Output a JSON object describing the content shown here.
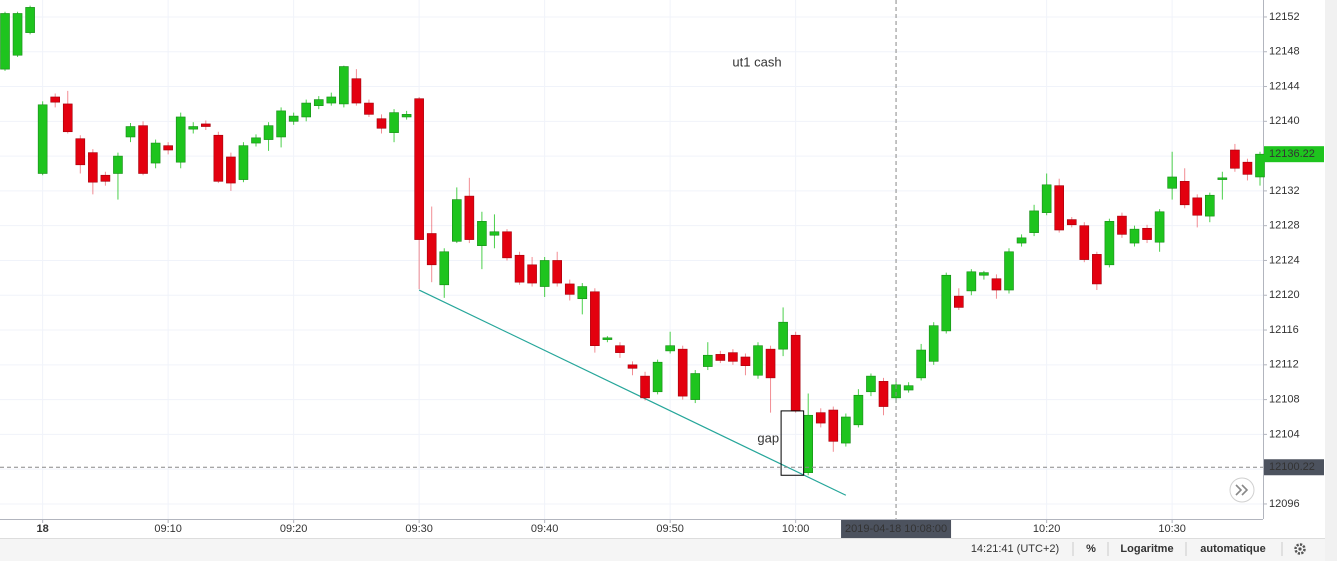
{
  "chart_data": {
    "type": "candlestick",
    "title": "ut1 cash",
    "categories": [
      "08:57",
      "08:58",
      "08:59",
      "09:00",
      "09:01",
      "09:02",
      "09:03",
      "09:04",
      "09:05",
      "09:06",
      "09:07",
      "09:08",
      "09:09",
      "09:10",
      "09:11",
      "09:12",
      "09:13",
      "09:14",
      "09:15",
      "09:16",
      "09:17",
      "09:18",
      "09:19",
      "09:20",
      "09:21",
      "09:22",
      "09:23",
      "09:24",
      "09:25",
      "09:26",
      "09:27",
      "09:28",
      "09:29",
      "09:30",
      "09:31",
      "09:32",
      "09:33",
      "09:34",
      "09:35",
      "09:36",
      "09:37",
      "09:38",
      "09:39",
      "09:40",
      "09:41",
      "09:42",
      "09:43",
      "09:44",
      "09:45",
      "09:46",
      "09:47",
      "09:48",
      "09:49",
      "09:50",
      "09:51",
      "09:52",
      "09:53",
      "09:54",
      "09:55",
      "09:56",
      "09:57",
      "09:58",
      "09:59",
      "10:00",
      "10:01",
      "10:02",
      "10:03",
      "10:04",
      "10:05",
      "10:06",
      "10:07",
      "10:08",
      "10:09",
      "10:10",
      "10:11",
      "10:12",
      "10:13",
      "10:14",
      "10:15",
      "10:16",
      "10:17",
      "10:18",
      "10:19",
      "10:20",
      "10:21",
      "10:22",
      "10:23",
      "10:24",
      "10:25",
      "10:26",
      "10:27",
      "10:28",
      "10:29",
      "10:30",
      "10:31",
      "10:32",
      "10:33",
      "10:34",
      "10:35",
      "10:36",
      "10:37"
    ],
    "ohlc": [
      [
        12146.0,
        12152.6,
        12145.8,
        12152.4
      ],
      [
        12147.6,
        12152.6,
        12147.4,
        12152.4
      ],
      [
        12150.2,
        12153.3,
        12150.0,
        12153.1
      ],
      [
        12134.0,
        12142.3,
        12133.8,
        12141.9
      ],
      [
        12142.8,
        12143.2,
        12141.6,
        12142.2
      ],
      [
        12142.0,
        12143.5,
        12138.6,
        12138.8
      ],
      [
        12138.0,
        12138.4,
        12134.0,
        12135.0
      ],
      [
        12136.4,
        12136.8,
        12131.6,
        12133.0
      ],
      [
        12133.8,
        12134.2,
        12132.6,
        12133.1
      ],
      [
        12134.0,
        12136.4,
        12131.0,
        12136.0
      ],
      [
        12138.2,
        12139.8,
        12137.6,
        12139.4
      ],
      [
        12139.5,
        12140.0,
        12133.8,
        12134.0
      ],
      [
        12135.2,
        12137.9,
        12134.6,
        12137.5
      ],
      [
        12137.2,
        12137.6,
        12136.2,
        12136.7
      ],
      [
        12135.3,
        12141.0,
        12134.6,
        12140.5
      ],
      [
        12139.1,
        12139.9,
        12138.6,
        12139.4
      ],
      [
        12139.7,
        12140.1,
        12139.0,
        12139.4
      ],
      [
        12138.4,
        12138.8,
        12132.9,
        12133.1
      ],
      [
        12135.9,
        12136.4,
        12132.0,
        12132.9
      ],
      [
        12133.3,
        12137.6,
        12133.0,
        12137.2
      ],
      [
        12137.5,
        12138.5,
        12137.1,
        12138.1
      ],
      [
        12137.9,
        12139.9,
        12136.6,
        12139.5
      ],
      [
        12138.2,
        12141.6,
        12137.0,
        12141.2
      ],
      [
        12140.0,
        12141.0,
        12139.6,
        12140.6
      ],
      [
        12140.5,
        12142.5,
        12140.0,
        12142.1
      ],
      [
        12141.8,
        12142.9,
        12141.4,
        12142.5
      ],
      [
        12142.1,
        12143.3,
        12141.8,
        12142.8
      ],
      [
        12142.0,
        12146.4,
        12141.6,
        12146.3
      ],
      [
        12144.9,
        12146.0,
        12141.8,
        12142.1
      ],
      [
        12142.1,
        12142.5,
        12140.5,
        12140.8
      ],
      [
        12140.3,
        12140.8,
        12138.6,
        12139.2
      ],
      [
        12138.7,
        12141.4,
        12137.6,
        12141.0
      ],
      [
        12140.5,
        12141.2,
        12140.2,
        12140.8
      ],
      [
        12142.6,
        12142.8,
        12120.7,
        12126.4
      ],
      [
        12127.1,
        12130.2,
        12121.5,
        12123.5
      ],
      [
        12121.2,
        12125.4,
        12119.7,
        12125.0
      ],
      [
        12126.2,
        12132.4,
        12126.0,
        12131.0
      ],
      [
        12131.4,
        12133.5,
        12126.0,
        12126.4
      ],
      [
        12125.7,
        12129.6,
        12123.0,
        12128.5
      ],
      [
        12126.9,
        12129.3,
        12125.4,
        12127.3
      ],
      [
        12127.3,
        12127.6,
        12124.0,
        12124.3
      ],
      [
        12124.6,
        12125.0,
        12121.2,
        12121.5
      ],
      [
        12123.5,
        12124.4,
        12121.0,
        12121.4
      ],
      [
        12121.0,
        12124.4,
        12119.8,
        12124.0
      ],
      [
        12124.0,
        12125.0,
        12121.0,
        12121.4
      ],
      [
        12121.3,
        12121.8,
        12119.4,
        12120.1
      ],
      [
        12119.6,
        12121.4,
        12117.8,
        12121.0
      ],
      [
        12120.4,
        12120.8,
        12113.4,
        12114.2
      ],
      [
        12114.9,
        12115.3,
        12114.6,
        12115.1
      ],
      [
        12114.2,
        12114.6,
        12112.8,
        12113.4
      ],
      [
        12112.0,
        12112.4,
        12110.8,
        12111.6
      ],
      [
        12110.7,
        12111.2,
        12107.9,
        12108.2
      ],
      [
        12108.9,
        12112.6,
        12108.6,
        12112.3
      ],
      [
        12113.6,
        12115.8,
        12113.3,
        12114.2
      ],
      [
        12113.8,
        12114.2,
        12108.0,
        12108.4
      ],
      [
        12108.0,
        12111.4,
        12107.6,
        12111.0
      ],
      [
        12111.8,
        12114.6,
        12111.4,
        12113.1
      ],
      [
        12113.2,
        12113.6,
        12112.2,
        12112.5
      ],
      [
        12113.4,
        12113.8,
        12112.0,
        12112.4
      ],
      [
        12112.9,
        12113.3,
        12110.8,
        12111.9
      ],
      [
        12110.8,
        12114.6,
        12110.4,
        12114.2
      ],
      [
        12113.8,
        12114.2,
        12106.5,
        12110.5
      ],
      [
        12113.8,
        12118.6,
        12113.0,
        12116.9
      ],
      [
        12115.4,
        12115.8,
        12106.5,
        12106.7
      ],
      [
        12099.6,
        12108.7,
        12099.3,
        12106.2
      ],
      [
        12106.5,
        12107.0,
        12104.8,
        12105.3
      ],
      [
        12106.8,
        12107.2,
        12102.0,
        12103.2
      ],
      [
        12103.0,
        12106.4,
        12102.6,
        12106.0
      ],
      [
        12105.1,
        12109.2,
        12104.8,
        12108.5
      ],
      [
        12108.9,
        12111.0,
        12108.4,
        12110.7
      ],
      [
        12110.1,
        12110.5,
        12106.2,
        12107.2
      ],
      [
        12108.2,
        12110.2,
        12107.6,
        12109.7
      ],
      [
        12109.1,
        12110.0,
        12108.8,
        12109.6
      ],
      [
        12110.5,
        12114.4,
        12110.2,
        12113.7
      ],
      [
        12112.4,
        12116.9,
        12112.0,
        12116.5
      ],
      [
        12115.9,
        12122.6,
        12115.6,
        12122.3
      ],
      [
        12119.9,
        12120.8,
        12118.3,
        12118.6
      ],
      [
        12120.5,
        12123.0,
        12120.0,
        12122.7
      ],
      [
        12122.3,
        12122.8,
        12121.8,
        12122.6
      ],
      [
        12121.9,
        12122.4,
        12119.6,
        12120.6
      ],
      [
        12120.6,
        12125.4,
        12120.2,
        12125.0
      ],
      [
        12126.0,
        12127.0,
        12125.6,
        12126.6
      ],
      [
        12127.2,
        12130.4,
        12126.8,
        12129.7
      ],
      [
        12129.5,
        12134.0,
        12129.2,
        12132.7
      ],
      [
        12132.6,
        12133.4,
        12127.2,
        12127.5
      ],
      [
        12128.7,
        12129.0,
        12127.8,
        12128.1
      ],
      [
        12128.0,
        12128.4,
        12123.8,
        12124.1
      ],
      [
        12124.7,
        12125.0,
        12120.6,
        12121.3
      ],
      [
        12123.5,
        12128.8,
        12123.2,
        12128.5
      ],
      [
        12129.1,
        12129.5,
        12126.6,
        12127.0
      ],
      [
        12126.0,
        12128.0,
        12125.6,
        12127.6
      ],
      [
        12127.7,
        12128.1,
        12126.0,
        12126.4
      ],
      [
        12126.1,
        12129.9,
        12125.0,
        12129.6
      ],
      [
        12132.3,
        12136.5,
        12131.0,
        12133.6
      ],
      [
        12133.1,
        12134.6,
        12130.0,
        12130.4
      ],
      [
        12131.2,
        12131.6,
        12127.8,
        12129.2
      ],
      [
        12129.1,
        12131.8,
        12128.4,
        12131.5
      ],
      [
        12133.3,
        12134.2,
        12131.0,
        12133.5
      ],
      [
        12136.7,
        12137.4,
        12134.2,
        12134.6
      ],
      [
        12135.3,
        12135.7,
        12133.2,
        12133.9
      ],
      [
        12133.6,
        12136.5,
        12132.6,
        12136.22
      ]
    ],
    "up_color": "#1ec41e",
    "down_color": "#e3000f",
    "ylim": [
      12094.27,
      12153.95
    ],
    "yticks": [
      12096.0,
      12100.0,
      12104.0,
      12108.0,
      12112.0,
      12116.0,
      12120.0,
      12124.0,
      12128.0,
      12132.0,
      12136.0,
      12140.0,
      12144.0,
      12148.0,
      12152.0
    ],
    "xticks": [
      {
        "value": "09:00",
        "label": "18"
      },
      "09:10",
      "09:20",
      "09:30",
      "09:40",
      "09:50",
      "10:00",
      "10:20",
      "10:30"
    ],
    "grid": true,
    "last_price": 12136.22,
    "crosshair": {
      "x": {
        "value": "10:08",
        "label": "2019-04-18 10:08:00"
      },
      "y": 12100.22
    },
    "trendline": {
      "x": [
        "09:30",
        "10:04"
      ],
      "y": [
        12120.6,
        12097.0
      ],
      "color": "#26a69a"
    },
    "gap_box": {
      "x": [
        "09:59",
        "10:00"
      ],
      "ylim": [
        12099.3,
        12106.7
      ]
    },
    "annotations": [
      "gap"
    ]
  },
  "toolbar": {
    "clock": "14:21:41 (UTC+2)",
    "percent": "%",
    "log": "Logaritme",
    "auto": "automatique"
  }
}
